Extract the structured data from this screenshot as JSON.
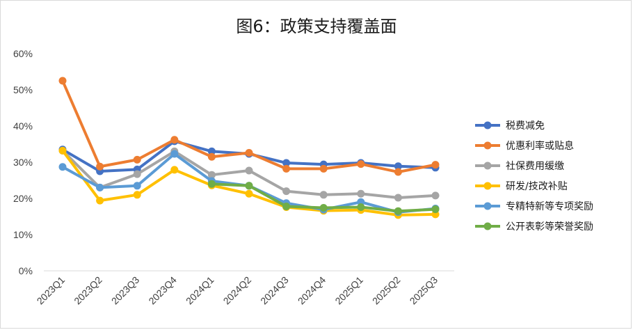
{
  "chart_data": {
    "type": "line",
    "title": "图6：政策支持覆盖面",
    "xlabel": "",
    "ylabel": "",
    "ylim": [
      0,
      60
    ],
    "yticks": [
      "0%",
      "10%",
      "20%",
      "30%",
      "40%",
      "50%",
      "60%"
    ],
    "grid": false,
    "legend_position": "right",
    "categories": [
      "2023Q1",
      "2023Q2",
      "2023Q3",
      "2023Q4",
      "2024Q1",
      "2024Q2",
      "2024Q3",
      "2024Q4",
      "2025Q1",
      "2025Q2",
      "2025Q3"
    ],
    "series": [
      {
        "name": "税费减免",
        "color": "#4472C4",
        "values": [
          33.5,
          27.5,
          28.0,
          35.8,
          33.0,
          32.3,
          29.8,
          29.4,
          29.8,
          28.9,
          28.5
        ]
      },
      {
        "name": "优惠利率或贴息",
        "color": "#ED7D31",
        "values": [
          52.5,
          28.8,
          30.7,
          36.2,
          31.5,
          32.6,
          28.2,
          28.2,
          29.5,
          27.3,
          29.3
        ]
      },
      {
        "name": "社保费用缓缴",
        "color": "#A5A5A5",
        "values": [
          33.2,
          23.0,
          26.7,
          33.0,
          26.5,
          27.7,
          22.0,
          21.0,
          21.3,
          20.2,
          20.8
        ]
      },
      {
        "name": "研发/技改补贴",
        "color": "#FFC000",
        "values": [
          33.2,
          19.4,
          21.0,
          27.9,
          23.6,
          21.3,
          17.6,
          16.6,
          16.8,
          15.4,
          15.6
        ]
      },
      {
        "name": "专精特新等专项奖励",
        "color": "#5B9BD5",
        "values": [
          28.7,
          23.0,
          23.5,
          32.3,
          24.8,
          23.5,
          18.7,
          16.9,
          19.0,
          16.2,
          17.2
        ]
      },
      {
        "name": "公开表彰等荣誉奖励",
        "color": "#70AD47",
        "values": [
          null,
          null,
          null,
          null,
          24.0,
          23.5,
          17.8,
          17.4,
          17.6,
          16.5,
          17.0
        ]
      }
    ]
  }
}
